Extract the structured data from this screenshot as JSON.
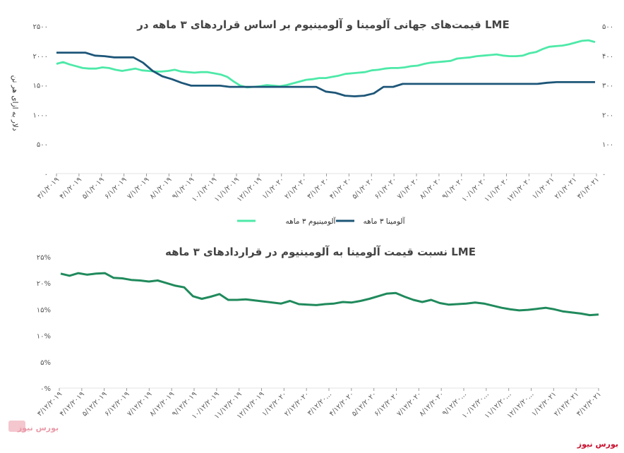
{
  "brand": {
    "name": "بورس نیوز",
    "logo_text": "بورس نیوز",
    "color": "#c8102e"
  },
  "colors": {
    "aluminium": "#4de9a8",
    "alumina": "#1d5678",
    "ratio": "#208a5c",
    "grid": "#e3e3e3"
  },
  "chart_data": [
    {
      "type": "line",
      "title": "قیمت‌های جهانی آلومینا و آلومینیوم بر اساس قراردهای ۳ ماهه در LME",
      "ylabel": "دلار به ازای هر تن",
      "ylim_left": [
        0,
        2500
      ],
      "ylim_right": [
        0,
        500
      ],
      "yticks_left": [
        "۰",
        "۵۰۰",
        "۱۰۰۰",
        "۱۵۰۰",
        "۲۰۰۰",
        "۲۵۰۰"
      ],
      "yticks_right": [
        "۰",
        "۱۰۰",
        "۲۰۰",
        "۳۰۰",
        "۴۰۰",
        "۵۰۰"
      ],
      "x_labels": [
        "۳/۱/۲۰۱۹",
        "۴/۱/۲۰۱۹",
        "۵/۱/۲۰۱۹",
        "۶/۱/۲۰۱۹",
        "۷/۱/۲۰۱۹",
        "۸/۱/۲۰۱۹",
        "۹/۱/۲۰۱۹",
        "۱۰/۱/۲۰۱۹",
        "۱۱/۱/۲۰۱۹",
        "۱۲/۱/۲۰۱۹",
        "۱/۱/۲۰۲۰",
        "۲/۱/۲۰۲۰",
        "۳/۱/۲۰۲۰",
        "۴/۱/۲۰۲۰",
        "۵/۱/۲۰۲۰",
        "۶/۱/۲۰۲۰",
        "۷/۱/۲۰۲۰",
        "۸/۱/۲۰۲۰",
        "۹/۱/۲۰۲۰",
        "۱۰/۱/۲۰۲۰",
        "۱۱/۱/۲۰۲۰",
        "۱۲/۱/۲۰۲۰",
        "۱/۱/۲۰۲۱",
        "۲/۱/۲۰۲۱",
        "۳/۱/۲۰۲۱"
      ],
      "series": [
        {
          "name": "آلومینیوم ۳ ماهه",
          "axis": "left",
          "values": [
            1860,
            1890,
            1850,
            1820,
            1790,
            1780,
            1780,
            1800,
            1790,
            1760,
            1740,
            1760,
            1780,
            1750,
            1740,
            1730,
            1730,
            1740,
            1760,
            1730,
            1720,
            1710,
            1720,
            1720,
            1700,
            1680,
            1640,
            1560,
            1490,
            1460,
            1470,
            1480,
            1500,
            1490,
            1480,
            1500,
            1530,
            1560,
            1590,
            1600,
            1620,
            1620,
            1640,
            1660,
            1690,
            1700,
            1710,
            1720,
            1750,
            1760,
            1780,
            1790,
            1790,
            1800,
            1820,
            1830,
            1860,
            1880,
            1890,
            1900,
            1910,
            1950,
            1960,
            1970,
            1990,
            2000,
            2010,
            2020,
            2000,
            1990,
            1990,
            2000,
            2040,
            2060,
            2110,
            2150,
            2160,
            2170,
            2190,
            2220,
            2250,
            2260,
            2230
          ]
        },
        {
          "name": "آلومینا ۳ ماهه",
          "axis": "right",
          "values": [
            410,
            410,
            410,
            410,
            400,
            398,
            394,
            394,
            394,
            376,
            348,
            330,
            320,
            308,
            298,
            298,
            298,
            298,
            294,
            294,
            294,
            294,
            294,
            294,
            294,
            294,
            294,
            294,
            278,
            274,
            264,
            262,
            264,
            272,
            294,
            294,
            304,
            304,
            304,
            304,
            304,
            304,
            304,
            304,
            304,
            304,
            304,
            304,
            304,
            304,
            304,
            308,
            310,
            310,
            310,
            310,
            310
          ]
        }
      ]
    },
    {
      "type": "line",
      "title": "نسبت قیمت آلومینا به آلومینیوم در قراردادهای ۳ ماهه LME",
      "ylim": [
        0,
        25
      ],
      "yticks": [
        "۰%",
        "۵%",
        "۱۰%",
        "۱۵%",
        "۲۰%",
        "۲۵%"
      ],
      "x_labels": [
        "۳/۱۲/۲۰۱۹",
        "۴/۱۲/۲۰۱۹",
        "۵/۱۲/۲۰۱۹",
        "۶/۱۲/۲۰۱۹",
        "۷/۱۲/۲۰۱۹",
        "۸/۱۲/۲۰۱۹",
        "۹/۱۲/۲۰۱۹",
        "۱۰/۱۲/۲۰۱۹",
        "۱۱/۱۲/۲۰۱۹",
        "۱۲/۱۲/۲۰۱۹",
        "۱/۱۲/۲۰۲۰",
        "۲/۱۲/۲۰۲۰",
        "۳/۱۲/۲۰...",
        "۴/۱۲/۲۰۲۰",
        "۵/۱۲/۲۰۲۰",
        "۶/۱۲/۲۰۲۰",
        "۷/۱۲/۲۰۲۰",
        "۸/۱۲/۲۰۲۰",
        "۹/۱۲/۲۰...",
        "۱۰/۱۲/۲۰...",
        "۱۱/۱۲/۲۰...",
        "۱۲/۱۲/۲۰...",
        "۱/۱۲/۲۰۲۱",
        "۲/۱۲/۲۰۲۱",
        "۳/۱۲/۲۰۲۱"
      ],
      "series": [
        {
          "name": "نسبت آلومینا به آلومینیوم",
          "values": [
            21.8,
            21.4,
            21.9,
            21.6,
            21.8,
            21.9,
            21.0,
            20.9,
            20.6,
            20.5,
            20.3,
            20.5,
            20.0,
            19.5,
            19.2,
            17.5,
            17.0,
            17.4,
            17.9,
            16.8,
            16.8,
            16.9,
            16.7,
            16.5,
            16.3,
            16.1,
            16.6,
            16.0,
            15.9,
            15.8,
            16.0,
            16.1,
            16.4,
            16.3,
            16.6,
            17.0,
            17.5,
            18.0,
            18.1,
            17.4,
            16.8,
            16.4,
            16.8,
            16.2,
            15.9,
            16.0,
            16.1,
            16.3,
            16.1,
            15.7,
            15.3,
            15.0,
            14.8,
            14.9,
            15.1,
            15.3,
            15.0,
            14.6,
            14.4,
            14.2,
            13.9,
            14.0
          ]
        }
      ]
    }
  ]
}
